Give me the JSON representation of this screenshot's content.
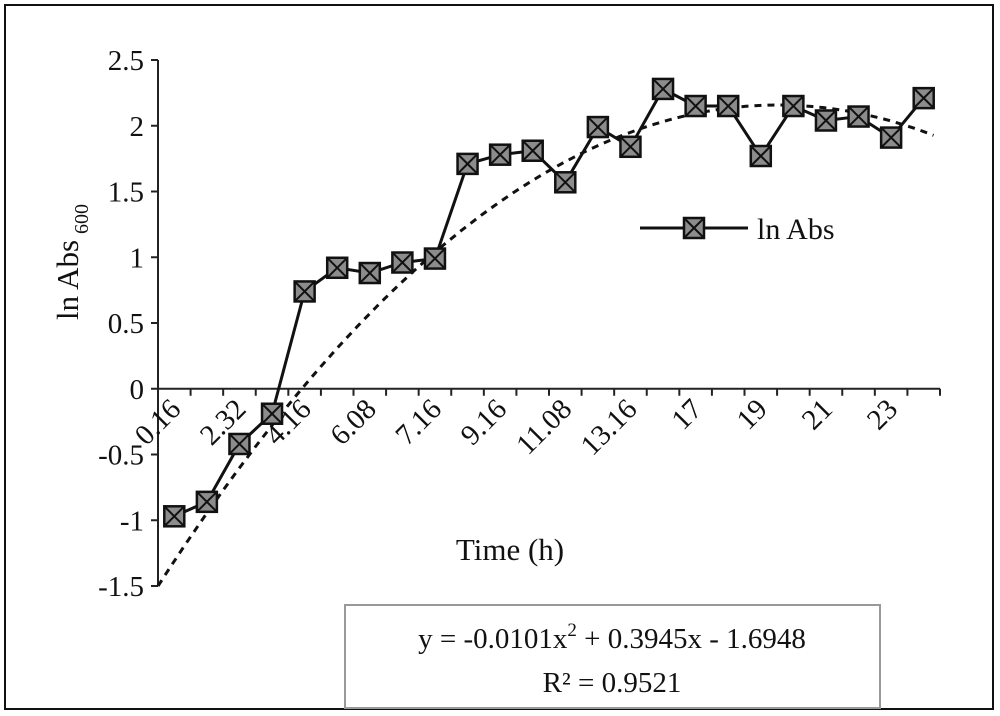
{
  "chart_data": {
    "type": "line",
    "title": "",
    "ylabel": "ln Abs",
    "ylabel_subscript": "600",
    "xlabel": "Time (h)",
    "ylim": [
      -1.5,
      2.5
    ],
    "yticks": [
      "2.5",
      "2",
      "1.5",
      "1",
      "0.5",
      "0",
      "-0.5",
      "-1",
      "-1.5"
    ],
    "ytick_values": [
      2.5,
      2,
      1.5,
      1,
      0.5,
      0,
      -0.5,
      -1,
      -1.5
    ],
    "xtick_labels": [
      "0.16",
      "2.32",
      "4.16",
      "6.08",
      "7.16",
      "9.16",
      "11.08",
      "13.16",
      "17",
      "19",
      "21",
      "23"
    ],
    "series": [
      {
        "name": "ln Abs",
        "marker": "square-x",
        "color": "#111111",
        "marker_fill": "#8c8c8c",
        "values": [
          -0.97,
          -0.86,
          -0.42,
          -0.19,
          0.74,
          0.92,
          0.88,
          0.96,
          0.99,
          1.71,
          1.78,
          1.81,
          1.57,
          1.99,
          1.84,
          2.28,
          2.15,
          2.15,
          1.77,
          2.15,
          2.04,
          2.07,
          1.91,
          2.21
        ]
      }
    ],
    "trendline": {
      "type": "polynomial",
      "style": "dashed",
      "coefficients": [
        -0.0101,
        0.3945,
        -1.6948
      ],
      "equation_prefix": "y = -0.0101x",
      "equation_exponent": "2",
      "equation_suffix": " + 0.3945x - 1.6948",
      "r_squared": "R² = 0.9521"
    },
    "legend": {
      "position": "right",
      "label": "ln Abs"
    },
    "grid": false
  }
}
